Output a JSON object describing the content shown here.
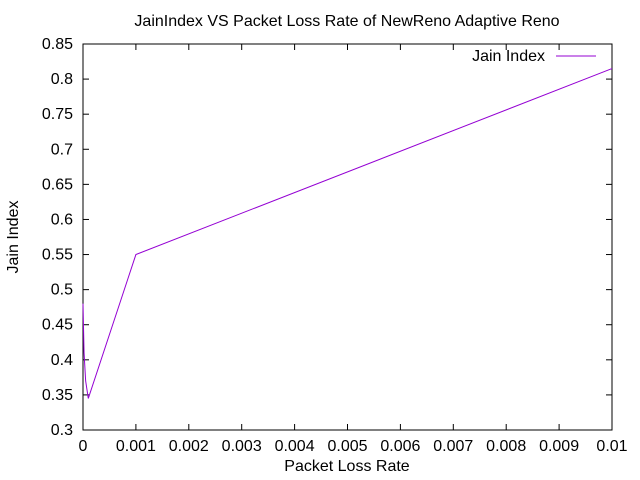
{
  "chart_data": {
    "type": "line",
    "title": "JainIndex VS Packet Loss Rate of NewReno  Adaptive Reno",
    "xlabel": "Packet Loss Rate",
    "ylabel": "Jain Index",
    "xlim": [
      0,
      0.01
    ],
    "ylim": [
      0.3,
      0.85
    ],
    "xticks": [
      "0",
      "0.001",
      "0.002",
      "0.003",
      "0.004",
      "0.005",
      "0.006",
      "0.007",
      "0.008",
      "0.009",
      "0.01"
    ],
    "yticks": [
      "0.3",
      "0.35",
      "0.4",
      "0.45",
      "0.5",
      "0.55",
      "0.6",
      "0.65",
      "0.7",
      "0.75",
      "0.8",
      "0.85"
    ],
    "legend_position": "top-right",
    "grid": false,
    "series": [
      {
        "name": "Jain Index",
        "color": "#9400d3",
        "x": [
          0,
          2e-05,
          5e-05,
          0.0001,
          0.001,
          0.01
        ],
        "y": [
          0.48,
          0.41,
          0.37,
          0.345,
          0.55,
          0.815
        ]
      }
    ]
  }
}
